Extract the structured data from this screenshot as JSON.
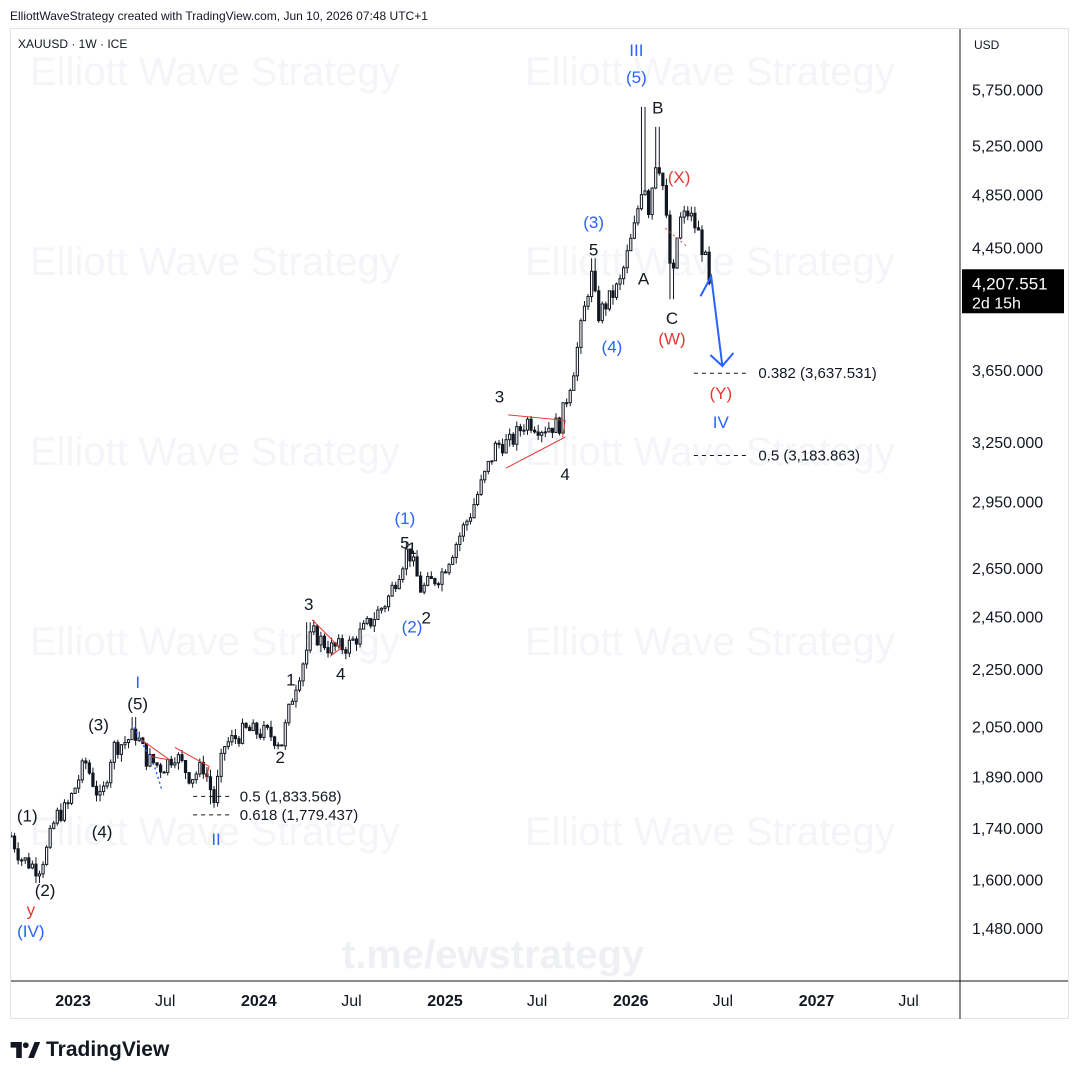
{
  "header": {
    "text": "ElliottWaveStrategy created with TradingView.com, Jun 10, 2026 07:48 UTC+1"
  },
  "symbol": {
    "text": "XAUUSD · 1W · ICE"
  },
  "currency": "USD",
  "watermarks": [
    "Elliott Wave Strategy"
  ],
  "link_watermark": "t.me/ewstrategy",
  "footer": {
    "brand": "TradingView",
    "icon": "tradingview-logo-icon"
  },
  "price_label": {
    "price": "4,207.551",
    "countdown": "2d 15h"
  },
  "colors": {
    "up": "#131722",
    "down": "#131722",
    "accent_blue": "#2962ff",
    "wave_blue": "#2962ff",
    "wave_red": "#e53935",
    "triangle_red": "#e53935",
    "label_bg": "#000000",
    "grid": "#f0f3fa"
  },
  "chart_data": {
    "type": "candlestick",
    "title": "XAUUSD · 1W · ICE",
    "y_scale": "log",
    "ylim": [
      1360,
      6350
    ],
    "y_ticks": [
      5750,
      5250,
      4850,
      4450,
      3650,
      3250,
      2950,
      2650,
      2450,
      2250,
      2050,
      1890,
      1740,
      1600,
      1480
    ],
    "y_tick_labels": [
      "5,750.000",
      "5,250.000",
      "4,850.000",
      "4,450.000",
      "3,650.000",
      "3,250.000",
      "2,950.000",
      "2,650.000",
      "2,450.000",
      "2,250.000",
      "2,050.000",
      "1,890.000",
      "1,740.000",
      "1,600.000",
      "1,480.000"
    ],
    "x_range": [
      "2022-09-01",
      "2027-10-10"
    ],
    "x_ticks": [
      {
        "date": "2023-01-01",
        "label": "2023",
        "bold": true
      },
      {
        "date": "2023-07-01",
        "label": "Jul",
        "bold": false
      },
      {
        "date": "2024-01-01",
        "label": "2024",
        "bold": true
      },
      {
        "date": "2024-07-01",
        "label": "Jul",
        "bold": false
      },
      {
        "date": "2025-01-01",
        "label": "2025",
        "bold": true
      },
      {
        "date": "2025-07-01",
        "label": "Jul",
        "bold": false
      },
      {
        "date": "2026-01-01",
        "label": "2026",
        "bold": true
      },
      {
        "date": "2026-07-01",
        "label": "Jul",
        "bold": false
      },
      {
        "date": "2027-01-01",
        "label": "2027",
        "bold": true
      },
      {
        "date": "2027-07-01",
        "label": "Jul",
        "bold": false
      }
    ],
    "last_price": 4207.551,
    "anchors": [
      [
        "2022-09-01",
        1720
      ],
      [
        "2022-09-20",
        1660
      ],
      [
        "2022-10-25",
        1630
      ],
      [
        "2022-11-10",
        1680
      ],
      [
        "2022-11-28",
        1775
      ],
      [
        "2022-12-20",
        1800
      ],
      [
        "2023-01-25",
        1940
      ],
      [
        "2023-02-25",
        1815
      ],
      [
        "2023-03-20",
        1985
      ],
      [
        "2023-04-10",
        2000
      ],
      [
        "2023-05-05",
        2030
      ],
      [
        "2023-05-25",
        1950
      ],
      [
        "2023-06-25",
        1920
      ],
      [
        "2023-07-20",
        1965
      ],
      [
        "2023-08-20",
        1890
      ],
      [
        "2023-09-15",
        1925
      ],
      [
        "2023-10-05",
        1820
      ],
      [
        "2023-10-25",
        1990
      ],
      [
        "2023-12-05",
        2040
      ],
      [
        "2024-01-20",
        2030
      ],
      [
        "2024-02-15",
        2000
      ],
      [
        "2024-03-10",
        2180
      ],
      [
        "2024-04-15",
        2390
      ],
      [
        "2024-05-20",
        2330
      ],
      [
        "2024-06-25",
        2340
      ],
      [
        "2024-07-25",
        2400
      ],
      [
        "2024-09-10",
        2520
      ],
      [
        "2024-10-20",
        2740
      ],
      [
        "2024-11-15",
        2560
      ],
      [
        "2024-12-25",
        2630
      ],
      [
        "2025-02-20",
        2900
      ],
      [
        "2025-04-12",
        3240
      ],
      [
        "2025-05-10",
        3250
      ],
      [
        "2025-06-10",
        3370
      ],
      [
        "2025-07-10",
        3330
      ],
      [
        "2025-08-15",
        3350
      ],
      [
        "2025-09-10",
        3650
      ],
      [
        "2025-10-15",
        4280
      ],
      [
        "2025-10-28",
        3990
      ],
      [
        "2025-12-10",
        4200
      ],
      [
        "2026-01-08",
        4600
      ],
      [
        "2026-01-26",
        5000
      ],
      [
        "2026-02-05",
        4750
      ],
      [
        "2026-02-20",
        5150
      ],
      [
        "2026-03-02",
        5050
      ],
      [
        "2026-03-16",
        4500
      ],
      [
        "2026-03-23",
        4150
      ],
      [
        "2026-04-05",
        4650
      ],
      [
        "2026-04-25",
        4720
      ],
      [
        "2026-05-15",
        4550
      ],
      [
        "2026-06-08",
        4207.551
      ]
    ],
    "wicks": [
      [
        "2024-04-08",
        2431
      ],
      [
        "2025-10-20",
        4381
      ],
      [
        "2026-01-26",
        5598
      ],
      [
        "2026-02-23",
        5420
      ],
      [
        "2026-03-23",
        4100
      ],
      [
        "2023-05-01",
        2085
      ],
      [
        "2023-10-02",
        1810
      ]
    ],
    "fib_levels": [
      {
        "ratio": "0.5",
        "value": "1,833.568",
        "date_start": "2023-08-25",
        "date_end": "2023-11-05"
      },
      {
        "ratio": "0.618",
        "value": "1,779.437",
        "date_start": "2023-08-25",
        "date_end": "2023-11-05"
      },
      {
        "ratio": "0.382",
        "value": "3,637.531",
        "date_start": "2026-05-05",
        "date_end": "2026-08-20"
      },
      {
        "ratio": "0.5",
        "value": "3,183.863",
        "date_start": "2026-05-05",
        "date_end": "2026-08-20"
      }
    ],
    "fib_text": [
      "0.5 (1,833.568)",
      "0.618 (1,779.437)",
      "0.382 (3,637.531)",
      "0.5 (3,183.863)"
    ],
    "wave_labels": [
      {
        "text": "III",
        "date": "2026-01-12",
        "price": 6080,
        "color": "blue"
      },
      {
        "text": "(5)",
        "date": "2026-01-12",
        "price": 5820,
        "color": "blue"
      },
      {
        "text": "B",
        "date": "2026-02-23",
        "price": 5540,
        "color": "black"
      },
      {
        "text": "(X)",
        "date": "2026-04-06",
        "price": 4950,
        "color": "red"
      },
      {
        "text": "A",
        "date": "2026-01-26",
        "price": 4200,
        "color": "black"
      },
      {
        "text": "C",
        "date": "2026-03-23",
        "price": 3940,
        "color": "black"
      },
      {
        "text": "(W)",
        "date": "2026-03-23",
        "price": 3810,
        "color": "red"
      },
      {
        "text": "(3)",
        "date": "2025-10-20",
        "price": 4600,
        "color": "blue"
      },
      {
        "text": "5",
        "date": "2025-10-20",
        "price": 4400,
        "color": "black"
      },
      {
        "text": "(4)",
        "date": "2025-11-25",
        "price": 3760,
        "color": "blue"
      },
      {
        "text": "3",
        "date": "2025-04-18",
        "price": 3470,
        "color": "black"
      },
      {
        "text": "4",
        "date": "2025-08-25",
        "price": 3060,
        "color": "black"
      },
      {
        "text": "(Y)",
        "date": "2026-06-27",
        "price": 3490,
        "color": "red"
      },
      {
        "text": "IV",
        "date": "2026-06-27",
        "price": 3330,
        "color": "blue"
      },
      {
        "text": "(1)",
        "date": "2024-10-14",
        "price": 2850,
        "color": "blue"
      },
      {
        "text": "5",
        "date": "2024-10-14",
        "price": 2740,
        "color": "black"
      },
      {
        "text": "1",
        "date": "2024-10-28",
        "price": 2715,
        "color": "black"
      },
      {
        "text": "(2)",
        "date": "2024-10-28",
        "price": 2390,
        "color": "blue"
      },
      {
        "text": "2",
        "date": "2024-11-25",
        "price": 2425,
        "color": "black"
      },
      {
        "text": "3",
        "date": "2024-04-08",
        "price": 2480,
        "color": "black"
      },
      {
        "text": "4",
        "date": "2024-06-10",
        "price": 2215,
        "color": "black"
      },
      {
        "text": "1",
        "date": "2024-03-04",
        "price": 2195,
        "color": "black"
      },
      {
        "text": "2",
        "date": "2024-02-12",
        "price": 1935,
        "color": "black"
      },
      {
        "text": "I",
        "date": "2023-05-08",
        "price": 2185,
        "color": "blue"
      },
      {
        "text": "(5)",
        "date": "2023-05-08",
        "price": 2110,
        "color": "black"
      },
      {
        "text": "(3)",
        "date": "2023-02-20",
        "price": 2040,
        "color": "black"
      },
      {
        "text": "(4)",
        "date": "2023-02-27",
        "price": 1715,
        "color": "black"
      },
      {
        "text": "II",
        "date": "2023-10-09",
        "price": 1695,
        "color": "blue"
      },
      {
        "text": "(1)",
        "date": "2022-10-03",
        "price": 1760,
        "color": "black"
      },
      {
        "text": "(2)",
        "date": "2022-11-07",
        "price": 1560,
        "color": "black"
      },
      {
        "text": "y",
        "date": "2022-10-10",
        "price": 1512,
        "color": "red"
      },
      {
        "text": "(IV)",
        "date": "2022-10-10",
        "price": 1460,
        "color": "blue"
      }
    ],
    "projection": [
      [
        "2026-05-18",
        4120
      ],
      [
        "2026-06-08",
        4255
      ],
      [
        "2026-06-30",
        3680
      ]
    ]
  }
}
